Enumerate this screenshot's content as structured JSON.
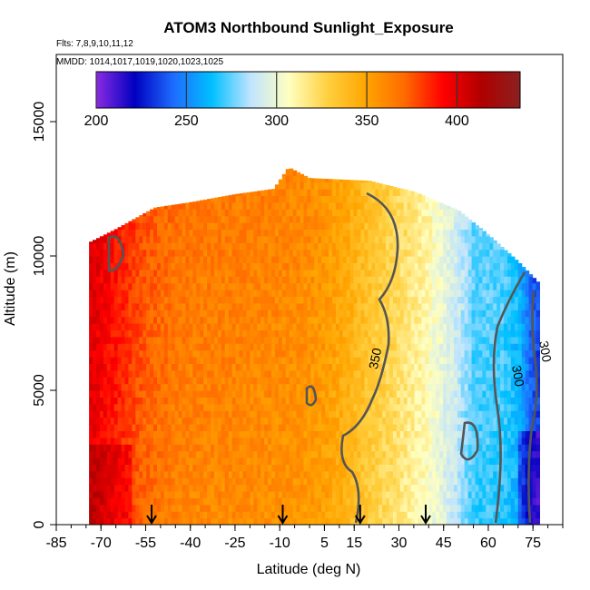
{
  "chart_data": {
    "type": "heatmap",
    "title": "ATOM3 Northbound Sunlight_Exposure",
    "subtitle_lines": [
      "Flts: 7,8,9,10,11,12",
      "MMDD: 1014,1017,1019,1020,1023,1025"
    ],
    "xlabel": "Latitude (deg N)",
    "ylabel": "Altitude (m)",
    "xlim": [
      -85,
      85
    ],
    "ylim": [
      0,
      17500
    ],
    "x_ticks": [
      -85,
      -70,
      -55,
      -40,
      -25,
      -10,
      5,
      15,
      30,
      45,
      60,
      75
    ],
    "y_ticks": [
      0,
      5000,
      10000,
      15000
    ],
    "colorbar": {
      "min": 200,
      "max": 435,
      "ticks": [
        200,
        250,
        300,
        350,
        400
      ],
      "stops": [
        "#8a2be2",
        "#0000c0",
        "#1e6cff",
        "#00bfff",
        "#bfe4ff",
        "#ffffc0",
        "#ffd040",
        "#ffa500",
        "#ff6a00",
        "#ff0000",
        "#b00000",
        "#8b2020"
      ]
    },
    "contours": [
      {
        "level": 350,
        "label": "350"
      },
      {
        "level": 300,
        "label": "300"
      },
      {
        "level": 300,
        "label": "300"
      }
    ],
    "flight_markers_lat": [
      -53,
      -9,
      17,
      39
    ],
    "field_model": {
      "lat_sw": [
        -85,
        -75,
        -65,
        -55,
        -45,
        -35,
        -20,
        -5,
        5,
        10,
        15,
        20,
        30,
        40,
        50,
        55,
        60,
        65,
        70,
        75,
        80
      ],
      "value_sw": [
        405,
        400,
        385,
        370,
        362,
        360,
        358,
        355,
        350,
        345,
        338,
        330,
        318,
        305,
        285,
        270,
        270,
        268,
        260,
        235,
        225
      ],
      "top_altitude": [
        {
          "lat": -74,
          "alt": 10500
        },
        {
          "lat": -65,
          "alt": 11000
        },
        {
          "lat": -52,
          "alt": 11800
        },
        {
          "lat": -40,
          "alt": 12000
        },
        {
          "lat": -25,
          "alt": 12300
        },
        {
          "lat": -12,
          "alt": 12500
        },
        {
          "lat": -7,
          "alt": 13300
        },
        {
          "lat": 0,
          "alt": 12900
        },
        {
          "lat": 20,
          "alt": 12800
        },
        {
          "lat": 35,
          "alt": 12400
        },
        {
          "lat": 50,
          "alt": 11700
        },
        {
          "lat": 60,
          "alt": 10800
        },
        {
          "lat": 70,
          "alt": 9800
        },
        {
          "lat": 77,
          "alt": 9000
        }
      ],
      "bottom_altitude": 0
    }
  }
}
